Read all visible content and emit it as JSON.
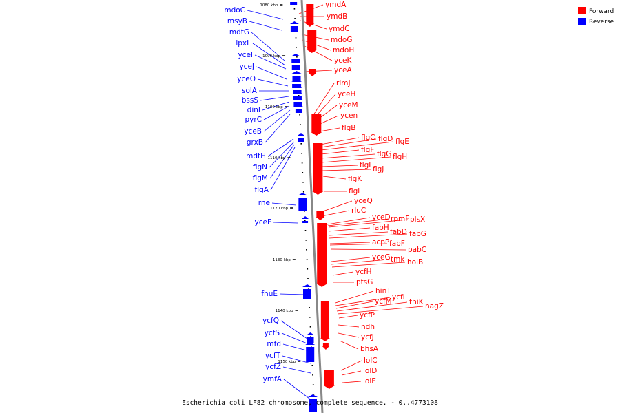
{
  "legend": {
    "forward_label": "Forward",
    "reverse_label": "Reverse",
    "forward_color": "#ff0000",
    "reverse_color": "#0000ff"
  },
  "caption": "Escherichia coli LF82 chromosome, complete sequence. - 0..4773108",
  "scale_ticks": [
    "1080 kbp",
    "1090 kbp",
    "1100 kbp",
    "1110 kbp",
    "1120 kbp",
    "1130 kbp",
    "1140 kbp",
    "1150 kbp"
  ],
  "reverse_genes": [
    "mdoC",
    "msyB",
    "mdtG",
    "lpxL",
    "yceI",
    "yceJ",
    "yceO",
    "solA",
    "bssS",
    "dinI",
    "pyrC",
    "yceB",
    "grxB",
    "mdtH",
    "flgN",
    "flgM",
    "flgA",
    "rne",
    "yceF",
    "fhuE",
    "ycfQ",
    "ycfS",
    "mfd",
    "ycfT",
    "ycfZ",
    "ymfA"
  ],
  "forward_genes": [
    "ymdA",
    "ymdB",
    "ymdC",
    "mdoG",
    "mdoH",
    "yceK",
    "yceA",
    "rimJ",
    "yceH",
    "yceM",
    "ycen",
    "flgB",
    "flgC",
    "flgD",
    "flgE",
    "flgF",
    "flgG",
    "flgH",
    "flgI",
    "flgJ",
    "flgK",
    "flgl",
    "yceQ",
    "rluC",
    "yceD",
    "rpmF",
    "plsX",
    "fabH",
    "fabD",
    "fabG",
    "acpP",
    "fabF",
    "pabC",
    "yceG",
    "tmk",
    "holB",
    "ycfH",
    "ptsG",
    "hinT",
    "ycfL",
    "ycfM",
    "thiK",
    "nagZ",
    "ycfP",
    "ndh",
    "ycfJ",
    "bhsA",
    "lolC",
    "lolD",
    "lolE"
  ]
}
